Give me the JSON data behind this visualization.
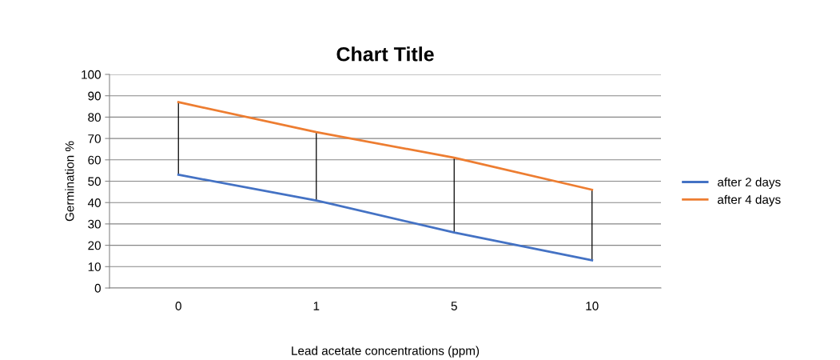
{
  "chart_data": {
    "type": "line",
    "title": "Chart Title",
    "xlabel": "Lead acetate concentrations (ppm)",
    "ylabel": "Germination %",
    "categories": [
      "0",
      "1",
      "5",
      "10"
    ],
    "series": [
      {
        "name": "after 2 days",
        "color": "#4472c4",
        "values": [
          53,
          41,
          26,
          13
        ],
        "errors": [
          [
            53,
            87
          ],
          [
            41,
            73
          ],
          [
            26,
            61
          ],
          [
            13,
            46
          ]
        ]
      },
      {
        "name": "after 4 days",
        "color": "#ed7d31",
        "values": [
          87,
          73,
          61,
          46
        ]
      }
    ],
    "ylim": [
      0,
      100
    ],
    "yticks": [
      0,
      10,
      20,
      30,
      40,
      50,
      60,
      70,
      80,
      90,
      100
    ],
    "grid": "y",
    "legend": "right",
    "marker": "none",
    "line_style": "solid"
  }
}
